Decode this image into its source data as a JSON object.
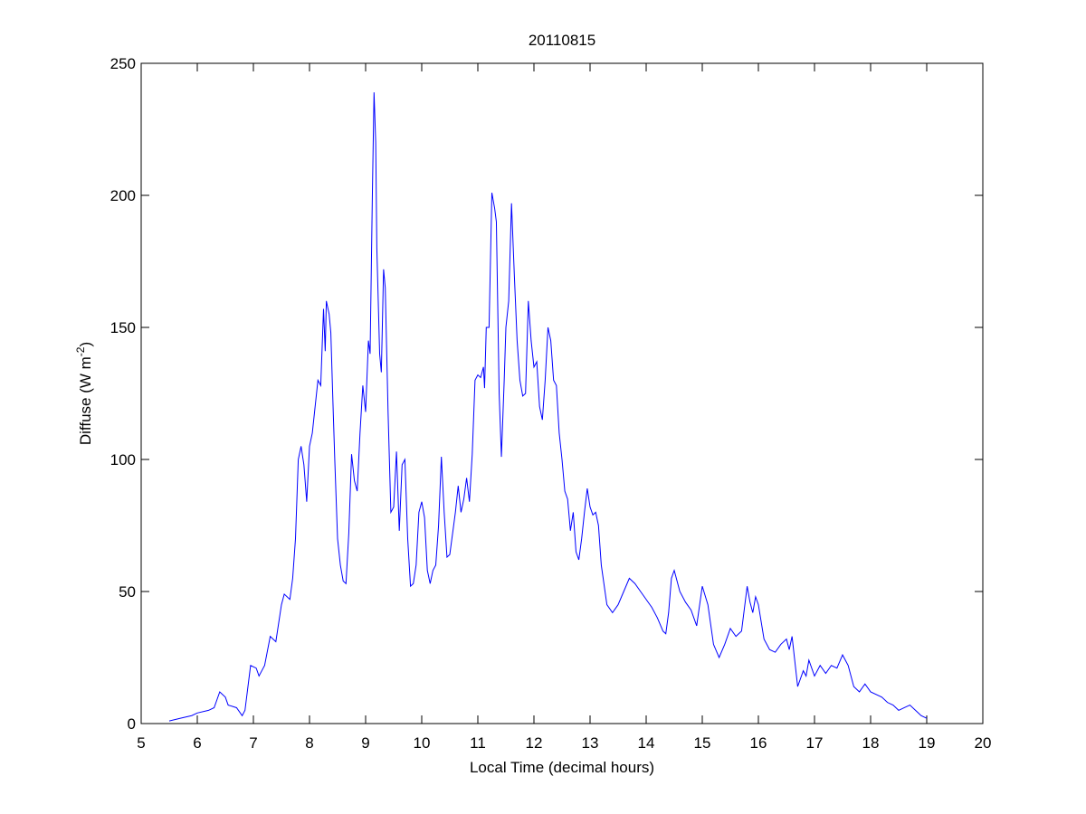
{
  "chart_data": {
    "type": "line",
    "title": "20110815",
    "xlabel": "Local Time (decimal hours)",
    "ylabel": [
      "Diffuse (W m",
      "-2",
      ")"
    ],
    "xlim": [
      5,
      20
    ],
    "ylim": [
      0,
      250
    ],
    "xticks": [
      5,
      6,
      7,
      8,
      9,
      10,
      11,
      12,
      13,
      14,
      15,
      16,
      17,
      18,
      19,
      20
    ],
    "yticks": [
      0,
      50,
      100,
      150,
      200,
      250
    ],
    "grid": false,
    "series": [
      {
        "color": "#0000ff",
        "x": [
          5.5,
          5.7,
          5.9,
          6.0,
          6.2,
          6.3,
          6.4,
          6.5,
          6.55,
          6.7,
          6.8,
          6.85,
          6.95,
          7.05,
          7.1,
          7.2,
          7.3,
          7.4,
          7.5,
          7.55,
          7.65,
          7.7,
          7.75,
          7.8,
          7.85,
          7.9,
          7.95,
          8.0,
          8.05,
          8.1,
          8.15,
          8.2,
          8.25,
          8.28,
          8.3,
          8.35,
          8.38,
          8.42,
          8.45,
          8.5,
          8.55,
          8.6,
          8.65,
          8.7,
          8.75,
          8.8,
          8.85,
          8.9,
          8.95,
          9.0,
          9.05,
          9.08,
          9.12,
          9.15,
          9.18,
          9.2,
          9.25,
          9.28,
          9.32,
          9.35,
          9.4,
          9.45,
          9.5,
          9.55,
          9.6,
          9.65,
          9.7,
          9.75,
          9.8,
          9.85,
          9.9,
          9.95,
          10.0,
          10.05,
          10.1,
          10.15,
          10.2,
          10.25,
          10.3,
          10.35,
          10.4,
          10.45,
          10.5,
          10.55,
          10.6,
          10.65,
          10.7,
          10.75,
          10.8,
          10.85,
          10.9,
          10.95,
          11.0,
          11.05,
          11.1,
          11.12,
          11.15,
          11.2,
          11.25,
          11.3,
          11.33,
          11.38,
          11.42,
          11.47,
          11.5,
          11.55,
          11.6,
          11.65,
          11.7,
          11.75,
          11.8,
          11.85,
          11.9,
          11.95,
          12.0,
          12.05,
          12.1,
          12.15,
          12.2,
          12.25,
          12.3,
          12.35,
          12.4,
          12.45,
          12.5,
          12.55,
          12.6,
          12.65,
          12.7,
          12.75,
          12.8,
          12.85,
          12.9,
          12.95,
          13.0,
          13.05,
          13.1,
          13.15,
          13.2,
          13.3,
          13.4,
          13.5,
          13.6,
          13.7,
          13.8,
          13.9,
          14.0,
          14.1,
          14.2,
          14.3,
          14.35,
          14.4,
          14.45,
          14.5,
          14.6,
          14.7,
          14.8,
          14.9,
          15.0,
          15.1,
          15.2,
          15.3,
          15.4,
          15.5,
          15.6,
          15.7,
          15.8,
          15.85,
          15.9,
          15.95,
          16.0,
          16.1,
          16.2,
          16.3,
          16.4,
          16.5,
          16.55,
          16.6,
          16.7,
          16.8,
          16.85,
          16.9,
          17.0,
          17.1,
          17.2,
          17.3,
          17.4,
          17.5,
          17.6,
          17.7,
          17.8,
          17.9,
          18.0,
          18.2,
          18.3,
          18.4,
          18.5,
          18.6,
          18.7,
          18.8,
          18.9,
          19.0
        ],
        "values": [
          1,
          2,
          3,
          4,
          5,
          6,
          12,
          10,
          7,
          6,
          3,
          5,
          22,
          21,
          18,
          22,
          33,
          31,
          45,
          49,
          47,
          55,
          70,
          100,
          105,
          98,
          84,
          105,
          110,
          120,
          130,
          128,
          157,
          141,
          160,
          155,
          148,
          120,
          100,
          70,
          60,
          54,
          53,
          72,
          102,
          92,
          88,
          110,
          128,
          118,
          145,
          140,
          200,
          239,
          220,
          180,
          140,
          133,
          172,
          165,
          118,
          80,
          82,
          103,
          73,
          98,
          100,
          70,
          52,
          53,
          60,
          80,
          84,
          78,
          58,
          53,
          58,
          60,
          75,
          101,
          80,
          63,
          64,
          72,
          80,
          90,
          80,
          85,
          93,
          84,
          102,
          130,
          132,
          131,
          135,
          127,
          150,
          150,
          201,
          195,
          190,
          125,
          101,
          130,
          150,
          160,
          197,
          170,
          145,
          130,
          124,
          125,
          160,
          145,
          135,
          137,
          120,
          115,
          130,
          150,
          145,
          130,
          128,
          110,
          100,
          88,
          85,
          73,
          80,
          65,
          62,
          70,
          80,
          89,
          82,
          79,
          80,
          75,
          60,
          45,
          42,
          45,
          50,
          55,
          53,
          50,
          47,
          44,
          40,
          35,
          34,
          42,
          55,
          58,
          50,
          46,
          43,
          37,
          52,
          45,
          30,
          25,
          30,
          36,
          33,
          35,
          52,
          46,
          42,
          48,
          45,
          32,
          28,
          27,
          30,
          32,
          28,
          33,
          14,
          20,
          18,
          24,
          18,
          22,
          19,
          22,
          21,
          26,
          22,
          14,
          12,
          15,
          12,
          10,
          8,
          7,
          5,
          6,
          7,
          5,
          3,
          2
        ]
      }
    ]
  }
}
